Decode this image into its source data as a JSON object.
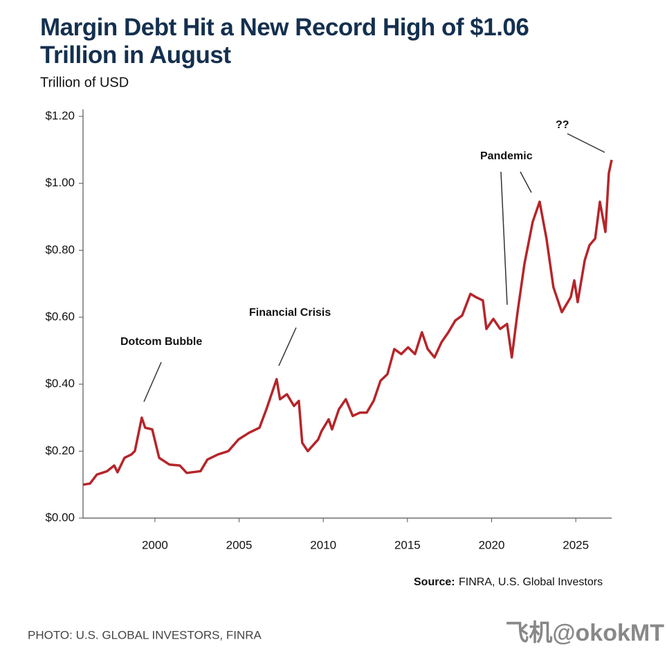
{
  "chart_data": {
    "type": "line",
    "title": "Margin Debt Hit a New Record High of $1.06 Trillion in August",
    "y_axis_label": "Trillion of USD",
    "x": [
      1995.73,
      1996.14,
      1996.55,
      1997.16,
      1997.58,
      1997.78,
      1998.19,
      1998.6,
      1998.81,
      1999.22,
      1999.42,
      1999.84,
      2000.25,
      2000.86,
      2001.48,
      2001.89,
      2002.71,
      2003.12,
      2003.74,
      2004.36,
      2004.97,
      2005.59,
      2006.21,
      2006.62,
      2007.23,
      2007.43,
      2007.84,
      2008.26,
      2008.55,
      2008.75,
      2009.08,
      2009.7,
      2009.9,
      2010.32,
      2010.52,
      2010.93,
      2011.34,
      2011.75,
      2012.17,
      2012.58,
      2012.99,
      2013.4,
      2013.81,
      2014.22,
      2014.63,
      2015.04,
      2015.45,
      2015.86,
      2016.2,
      2016.61,
      2017.02,
      2017.43,
      2017.84,
      2018.25,
      2018.74,
      2019.07,
      2019.48,
      2019.69,
      2020.1,
      2020.51,
      2020.92,
      2021.2,
      2021.54,
      2021.95,
      2022.44,
      2022.85,
      2023.26,
      2023.67,
      2024.17,
      2024.7,
      2024.91,
      2025.11,
      2025.53,
      2025.81,
      2026.15,
      2026.43,
      2026.76,
      2026.96,
      2027.13
    ],
    "series": [
      {
        "name": "Margin debt",
        "color": "#b5252a",
        "values": [
          0.1,
          0.103,
          0.13,
          0.14,
          0.157,
          0.137,
          0.18,
          0.19,
          0.2,
          0.3,
          0.27,
          0.265,
          0.18,
          0.16,
          0.157,
          0.135,
          0.14,
          0.175,
          0.19,
          0.2,
          0.235,
          0.255,
          0.27,
          0.325,
          0.415,
          0.355,
          0.37,
          0.335,
          0.35,
          0.225,
          0.2,
          0.235,
          0.26,
          0.295,
          0.265,
          0.325,
          0.355,
          0.305,
          0.315,
          0.315,
          0.35,
          0.41,
          0.43,
          0.505,
          0.49,
          0.51,
          0.49,
          0.555,
          0.505,
          0.48,
          0.525,
          0.555,
          0.59,
          0.605,
          0.67,
          0.66,
          0.65,
          0.565,
          0.595,
          0.565,
          0.58,
          0.48,
          0.615,
          0.76,
          0.885,
          0.945,
          0.835,
          0.69,
          0.615,
          0.66,
          0.71,
          0.645,
          0.77,
          0.815,
          0.835,
          0.945,
          0.855,
          1.03,
          1.07
        ]
      }
    ],
    "xlim": [
      1995.73,
      2027.13
    ],
    "xticks": [
      2000,
      2005,
      2010,
      2015,
      2020,
      2025
    ],
    "ylim": [
      0,
      1.2
    ],
    "yticks": [
      {
        "value": 0,
        "label": "$0.00"
      },
      {
        "value": 0.2,
        "label": "$0.20"
      },
      {
        "value": 0.4,
        "label": "$0.40"
      },
      {
        "value": 0.6,
        "label": "$0.60"
      },
      {
        "value": 0.8,
        "label": "$0.80"
      },
      {
        "value": 1.0,
        "label": "$1.00"
      },
      {
        "value": 1.2,
        "label": "$1.20"
      }
    ],
    "annotations": [
      "Dotcom Bubble",
      "Financial Crisis",
      "Pandemic",
      "??"
    ],
    "source_label": "Source:",
    "source": "FINRA, U.S. Global Investors",
    "photo_credit": "PHOTO: U.S. GLOBAL INVESTORS, FINRA",
    "watermark": "飞机@okokMT"
  }
}
